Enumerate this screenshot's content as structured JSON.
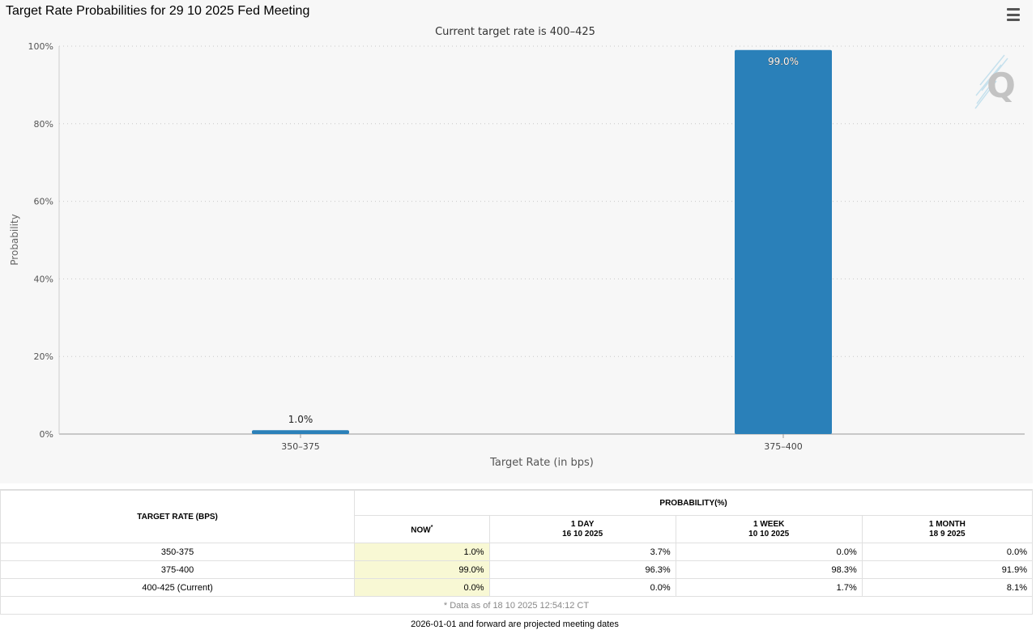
{
  "page_title": "Target Rate Probabilities for 29 10 2025 Fed Meeting",
  "menu_icon": "hamburger-menu-icon",
  "colors": {
    "bar": "#2a80b9",
    "plot_bg": "#f7f7f7",
    "now_highlight": "#f8f8d4"
  },
  "chart_data": {
    "type": "bar",
    "title": "",
    "subtitle": "Current target rate is 400–425",
    "categories": [
      "350–375",
      "375–400"
    ],
    "values": [
      1.0,
      99.0
    ],
    "data_labels": [
      "1.0%",
      "99.0%"
    ],
    "xlabel": "Target Rate (in bps)",
    "ylabel": "Probability",
    "ylim": [
      0,
      100
    ],
    "y_ticks": [
      "0%",
      "20%",
      "40%",
      "60%",
      "80%",
      "100%"
    ],
    "y_tick_values": [
      0,
      20,
      40,
      60,
      80,
      100
    ],
    "grid": true,
    "watermark_icon": "q-logo-icon"
  },
  "table": {
    "rate_header": "TARGET RATE (BPS)",
    "probability_header": "PROBABILITY(%)",
    "columns": [
      {
        "label": "NOW",
        "marker": "*",
        "date": ""
      },
      {
        "label": "1 DAY",
        "date": "16 10 2025"
      },
      {
        "label": "1 WEEK",
        "date": "10 10 2025"
      },
      {
        "label": "1 MONTH",
        "date": "18 9 2025"
      }
    ],
    "rows": [
      {
        "rate": "350-375",
        "now": "1.0%",
        "day": "3.7%",
        "week": "0.0%",
        "month": "0.0%"
      },
      {
        "rate": "375-400",
        "now": "99.0%",
        "day": "96.3%",
        "week": "98.3%",
        "month": "91.9%"
      },
      {
        "rate": "400-425 (Current)",
        "now": "0.0%",
        "day": "0.0%",
        "week": "1.7%",
        "month": "8.1%"
      }
    ],
    "footnote": "* Data as of 18 10 2025 12:54:12 CT"
  },
  "projection_note": "2026-01-01 and forward are projected meeting dates"
}
